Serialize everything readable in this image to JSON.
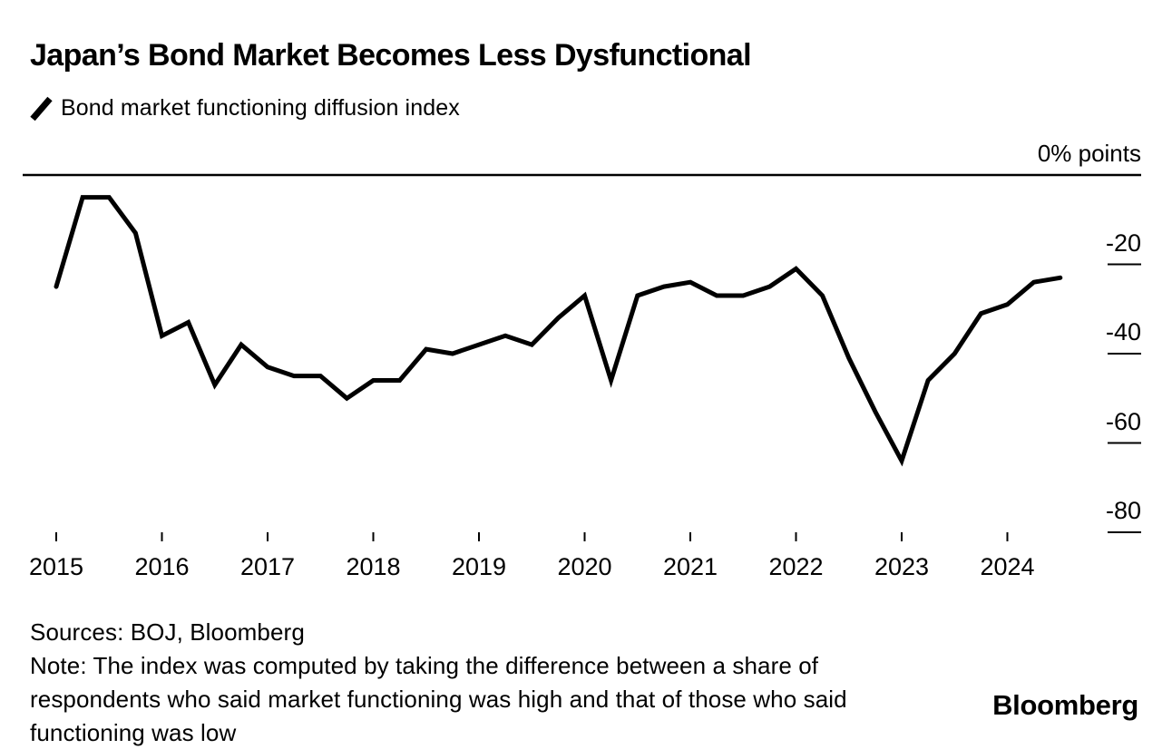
{
  "header": {
    "title": "Japan’s Bond Market Becomes Less Dysfunctional",
    "legend_label": "Bond market functioning diffusion index"
  },
  "axis": {
    "unit_label": "0% points"
  },
  "chart_data": {
    "type": "line",
    "title": "Japan’s Bond Market Becomes Less Dysfunctional",
    "series_name": "Bond market functioning diffusion index",
    "unit": "% points",
    "x": [
      "Feb 2015",
      "May 2015",
      "Aug 2015",
      "Nov 2015",
      "Feb 2016",
      "May 2016",
      "Aug 2016",
      "Nov 2016",
      "Feb 2017",
      "May 2017",
      "Aug 2017",
      "Nov 2017",
      "Feb 2018",
      "May 2018",
      "Aug 2018",
      "Nov 2018",
      "Feb 2019",
      "May 2019",
      "Aug 2019",
      "Nov 2019",
      "Feb 2020",
      "May 2020",
      "Aug 2020",
      "Nov 2020",
      "Feb 2021",
      "May 2021",
      "Aug 2021",
      "Nov 2021",
      "Feb 2022",
      "May 2022",
      "Aug 2022",
      "Nov 2022",
      "Feb 2023",
      "May 2023",
      "Aug 2023",
      "Nov 2023",
      "Feb 2024",
      "May 2024",
      "Aug 2024"
    ],
    "values": [
      -25,
      -5,
      -5,
      -13,
      -36,
      -33,
      -47,
      -38,
      -43,
      -45,
      -45,
      -50,
      -46,
      -46,
      -39,
      -40,
      -38,
      -36,
      -38,
      -32,
      -27,
      -46,
      -27,
      -25,
      -24,
      -27,
      -27,
      -25,
      -21,
      -27,
      -41,
      -53,
      -64,
      -46,
      -40,
      -31,
      -29,
      -24,
      -23
    ],
    "x_tick_labels": [
      "2015",
      "2016",
      "2017",
      "2018",
      "2019",
      "2020",
      "2021",
      "2022",
      "2023",
      "2024"
    ],
    "y_tick_labels": [
      "-20",
      "-40",
      "-60",
      "-80"
    ],
    "y_ticks": [
      -20,
      -40,
      -60,
      -80
    ],
    "ylim": [
      -90,
      0
    ],
    "grid": "right-tick-marks-only",
    "legend_position": "top-left",
    "line_color": "#000000",
    "axis_color": "#000000"
  },
  "footer": {
    "sources": "Sources: BOJ, Bloomberg",
    "note": "Note: The index was computed by taking the difference between a share of respondents who said market functioning was high and that of those who said functioning was low",
    "brand": "Bloomberg"
  }
}
